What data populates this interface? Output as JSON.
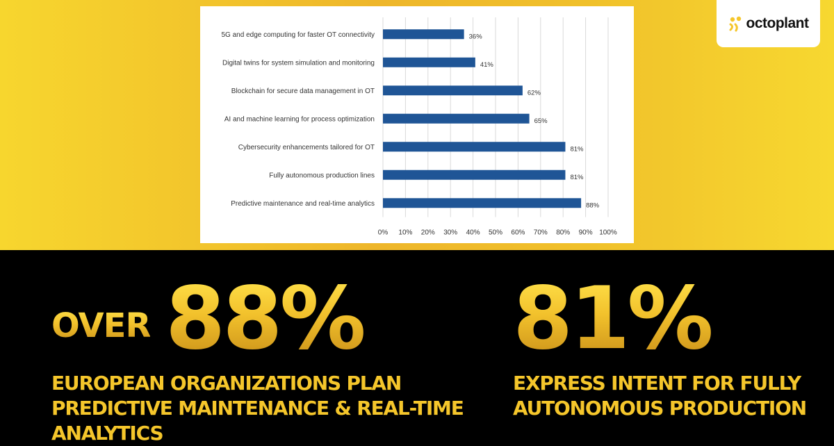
{
  "brand": {
    "name": "octoplant"
  },
  "chart_data": {
    "type": "bar",
    "orientation": "horizontal",
    "categories": [
      "5G and edge computing for faster OT connectivity",
      "Digital twins for system simulation and monitoring",
      "Blockchain for secure data management in OT",
      "AI and machine learning for process optimization",
      "Cybersecurity enhancements tailored for OT",
      "Fully autonomous production lines",
      "Predictive maintenance and real-time analytics"
    ],
    "values": [
      36,
      41,
      62,
      65,
      81,
      81,
      88
    ],
    "value_labels": [
      "36%",
      "41%",
      "62%",
      "65%",
      "81%",
      "81%",
      "88%"
    ],
    "x_ticks": [
      "0%",
      "10%",
      "20%",
      "30%",
      "40%",
      "50%",
      "60%",
      "70%",
      "80%",
      "90%",
      "100%"
    ],
    "xlim": [
      0,
      100
    ],
    "grid": "vertical",
    "bar_color": "#1f5596",
    "title": "",
    "xlabel": "",
    "ylabel": ""
  },
  "headline": {
    "over_label": "OVER",
    "stat_one": "88%",
    "caption_one": "EUROPEAN ORGANIZATIONS PLAN PREDICTIVE MAINTENANCE & REAL-TIME ANALYTICS",
    "stat_two": "81%",
    "caption_two": "EXPRESS INTENT FOR FULLY AUTONOMOUS PRODUCTION"
  },
  "colors": {
    "accent": "#f5c62b",
    "background_top": "#f2c52c",
    "background_bottom": "#000000"
  }
}
